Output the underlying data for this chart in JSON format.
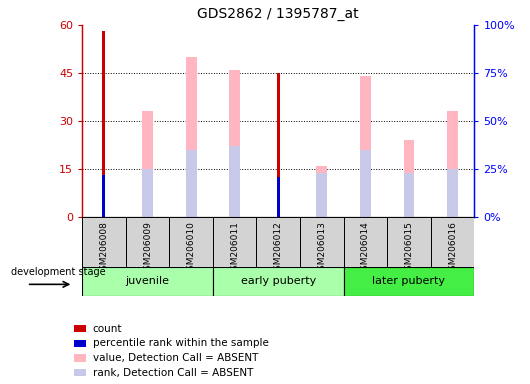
{
  "title": "GDS2862 / 1395787_at",
  "samples": [
    "GSM206008",
    "GSM206009",
    "GSM206010",
    "GSM206011",
    "GSM206012",
    "GSM206013",
    "GSM206014",
    "GSM206015",
    "GSM206016"
  ],
  "count_values": [
    58,
    0,
    0,
    0,
    45,
    0,
    0,
    0,
    0
  ],
  "percentile_rank_values": [
    22,
    0,
    0,
    0,
    21,
    0,
    0,
    0,
    0
  ],
  "value_absent": [
    0,
    33,
    50,
    46,
    0,
    16,
    44,
    24,
    33
  ],
  "rank_absent_pct": [
    0,
    25,
    35,
    37,
    0,
    23,
    35,
    23,
    25
  ],
  "groups": [
    {
      "label": "juvenile",
      "start": 0,
      "end": 3
    },
    {
      "label": "early puberty",
      "start": 3,
      "end": 6
    },
    {
      "label": "later puberty",
      "start": 6,
      "end": 9
    }
  ],
  "ylim_left": [
    0,
    60
  ],
  "ylim_right": [
    0,
    100
  ],
  "yticks_left": [
    0,
    15,
    30,
    45,
    60
  ],
  "yticks_right": [
    0,
    25,
    50,
    75,
    100
  ],
  "yticklabels_left": [
    "0",
    "15",
    "30",
    "45",
    "60"
  ],
  "yticklabels_right": [
    "0%",
    "25%",
    "50%",
    "75%",
    "100%"
  ],
  "count_color": "#CC0000",
  "percentile_color": "#0000CC",
  "value_absent_color": "#FFB6C1",
  "rank_absent_color": "#C8C8E8",
  "group_colors": [
    "#AAFFAA",
    "#AAFFAA",
    "#44EE44"
  ],
  "legend_labels": [
    "count",
    "percentile rank within the sample",
    "value, Detection Call = ABSENT",
    "rank, Detection Call = ABSENT"
  ],
  "legend_colors": [
    "#CC0000",
    "#0000CC",
    "#FFB6C1",
    "#C8C8E8"
  ]
}
